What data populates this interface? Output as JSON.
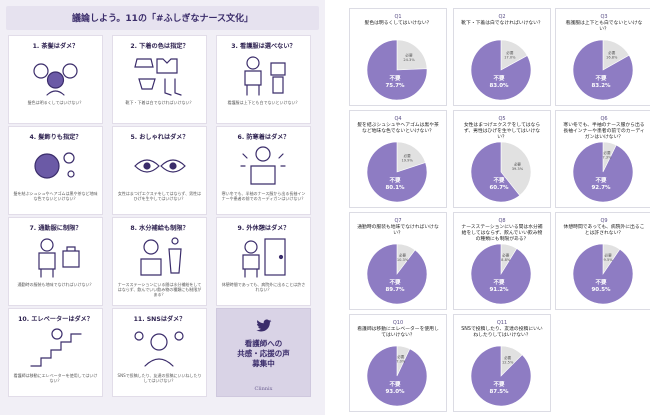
{
  "colors": {
    "fuhitsuyo": "#8e7cc3",
    "hitsuyo": "#e1e1e1",
    "accent": "#3b2d6b"
  },
  "infographic": {
    "title": "議論しよう。11の「#ふしぎなナース文化」",
    "cards": [
      {
        "header": "1. 茶髪はダメ？",
        "caption": "髪色は明るくしてはいけない？",
        "icon": "nurse-faces-icon"
      },
      {
        "header": "2. 下着の色は指定？",
        "caption": "靴下・下着は白でなければいけない？",
        "icon": "underwear-icon"
      },
      {
        "header": "3. 看護服は選べない？",
        "caption": "看護服は上下とも白でないといけない？",
        "icon": "uniform-choice-icon"
      },
      {
        "header": "4. 髪飾りも指定？",
        "caption": "髪を結ぶシュシュやヘアゴムは黒や茶など地味な色でないといけない？",
        "icon": "hair-tie-icon"
      },
      {
        "header": "5. おしゃれはダメ？",
        "caption": "女性はまつげエクステをしてはならず、男性はひげを生やしてはいけない？",
        "icon": "eyelash-icon"
      },
      {
        "header": "6. 防寒着はダメ？",
        "caption": "寒い冬でも、半袖のナース服から出る長袖インナーや患者の前でのカーディガンはいけない？",
        "icon": "cold-nurse-icon"
      },
      {
        "header": "7. 通勤服に制限？",
        "caption": "通勤時の服装も地味でなければいけない？",
        "icon": "commute-icon"
      },
      {
        "header": "8. 水分補給も制限？",
        "caption": "ナースステーションにいる間は水分補給をしてはならず、飲んでいい飲み物の種類にも制限がある？",
        "icon": "drink-icon"
      },
      {
        "header": "9. 外休憩はダメ？",
        "caption": "休憩時間であっても、病院外に出ることは許されない？",
        "icon": "door-icon"
      },
      {
        "header": "10. エレベーターはダメ？",
        "caption": "看護師は移動にエレベーターを使用してはいけない？",
        "icon": "stairs-icon"
      },
      {
        "header": "11. SNSはダメ？",
        "caption": "SNSで投稿したり、友達の投稿にいいねしたりしてはいけない？",
        "icon": "sns-icon"
      }
    ],
    "promo": {
      "text": "看護師への\n共感・応援の声\n募集中",
      "brand": "Clinnix",
      "icon": "twitter-bird-icon"
    }
  },
  "chart_data": [
    {
      "type": "pie",
      "number": "Q1",
      "title": "髪色は明るくしてはいけない？",
      "categories": [
        "不要",
        "必要"
      ],
      "values": [
        75.7,
        24.3
      ]
    },
    {
      "type": "pie",
      "number": "Q2",
      "title": "靴下・下着は白でなければいけない？",
      "categories": [
        "不要",
        "必要"
      ],
      "values": [
        83.0,
        17.0
      ]
    },
    {
      "type": "pie",
      "number": "Q3",
      "title": "看護服は上下とも白でないといけない？",
      "categories": [
        "不要",
        "必要"
      ],
      "values": [
        83.2,
        16.8
      ]
    },
    {
      "type": "pie",
      "number": "Q4",
      "title": "髪を結ぶシュシュやヘアゴムは黒や茶など地味な色でないといけない？",
      "categories": [
        "不要",
        "必要"
      ],
      "values": [
        80.1,
        19.9
      ]
    },
    {
      "type": "pie",
      "number": "Q5",
      "title": "女性はまつげエクステをしてはならず、男性はひげを生やしてはいけない？",
      "categories": [
        "不要",
        "必要"
      ],
      "values": [
        60.7,
        39.3
      ]
    },
    {
      "type": "pie",
      "number": "Q6",
      "title": "寒い冬でも、半袖のナース服から出る長袖インナーや患者の前でのカーディガンはいけない？",
      "categories": [
        "不要",
        "必要"
      ],
      "values": [
        92.7,
        7.3
      ]
    },
    {
      "type": "pie",
      "number": "Q7",
      "title": "通勤時の服装も地味でなければいけない？",
      "categories": [
        "不要",
        "必要"
      ],
      "values": [
        89.7,
        10.3
      ]
    },
    {
      "type": "pie",
      "number": "Q8",
      "title": "ナースステーションにいる間は水分補給をしてはならず、飲んでいい飲み物の種類にも制限がある？",
      "categories": [
        "不要",
        "必要"
      ],
      "values": [
        91.2,
        8.8
      ]
    },
    {
      "type": "pie",
      "number": "Q9",
      "title": "休憩時間であっても、病院外に出ることは許されない？",
      "categories": [
        "不要",
        "必要"
      ],
      "values": [
        90.5,
        9.5
      ]
    },
    {
      "type": "pie",
      "number": "Q10",
      "title": "看護師は移動にエレベーターを使用してはいけない？",
      "categories": [
        "不要",
        "必要"
      ],
      "values": [
        93.0,
        7.0
      ]
    },
    {
      "type": "pie",
      "number": "Q11",
      "title": "SNSで投稿したり、友達の投稿にいいねしたりしてはいけない？",
      "categories": [
        "不要",
        "必要"
      ],
      "values": [
        87.5,
        12.5
      ]
    }
  ]
}
